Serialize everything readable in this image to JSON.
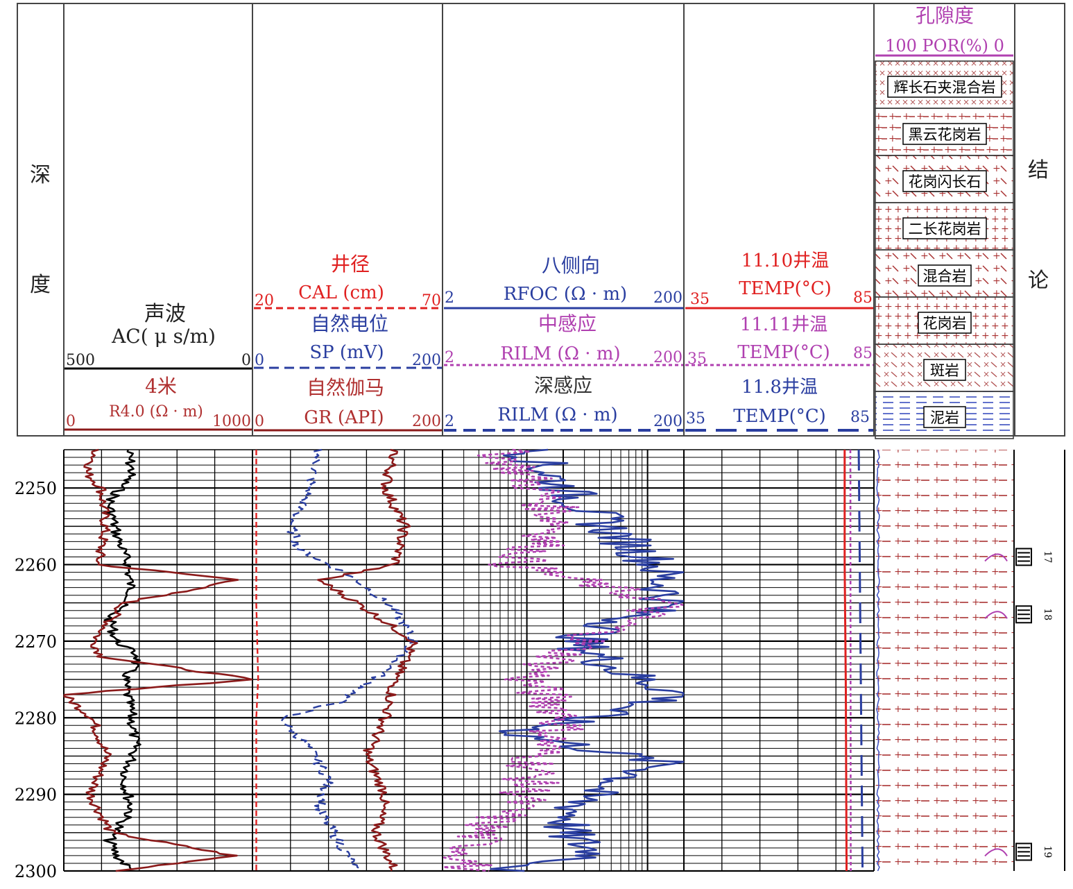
{
  "depth_header": {
    "char1": "深",
    "char2": "度"
  },
  "conclusion_header": {
    "char1": "结",
    "char2": "论"
  },
  "colors": {
    "brown": "#8b1a1a",
    "red": "#e02020",
    "blue": "#2a3ea0",
    "purple": "#b040b0",
    "black": "#000000"
  },
  "tracks": {
    "ac": {
      "name": "声波",
      "unit": "AC( μ s/m)",
      "left": "500",
      "right": "0",
      "color": "#000000"
    },
    "r4": {
      "name": "4米",
      "unit": "R4.0 (Ω · m)",
      "left": "0",
      "right": "1000",
      "color": "#8b1a1a"
    },
    "cal": {
      "name": "井径",
      "unit": "CAL (cm)",
      "left": "20",
      "right": "70",
      "color": "#e02020"
    },
    "sp": {
      "name": "自然电位",
      "unit": "SP (mV)",
      "left": "0",
      "right": "200",
      "color": "#2a3ea0"
    },
    "gr": {
      "name": "自然伽马",
      "unit": "GR (API)",
      "left": "0",
      "right": "200",
      "color": "#8b1a1a"
    },
    "rfoc": {
      "name": "八侧向",
      "unit": "RFOC (Ω · m)",
      "left": "2",
      "right": "200",
      "color": "#2a3ea0"
    },
    "rilm": {
      "name": "中感应",
      "unit": "RILM (Ω · m)",
      "left": "2",
      "right": "200",
      "color": "#b040b0"
    },
    "rild": {
      "name": "深感应",
      "unit": "RILM (Ω · m)",
      "left": "2",
      "right": "200",
      "color": "#2a3ea0"
    },
    "t1": {
      "name": "11.10井温",
      "unit": "TEMP(°C)",
      "left": "35",
      "right": "85",
      "color": "#e02020"
    },
    "t2": {
      "name": "11.11井温",
      "unit": "TEMP(°C)",
      "left": "35",
      "right": "85",
      "color": "#b040b0"
    },
    "t3": {
      "name": "11.8井温",
      "unit": "TEMP(°C)",
      "left": "35",
      "right": "85",
      "color": "#2a3ea0"
    },
    "por": {
      "name": "孔隙度",
      "unit": "100 POR(%) 0",
      "color": "#b040b0"
    }
  },
  "lithology_legend": [
    "辉长石夹混合岩",
    "黑云花岗岩",
    "花岗闪长石",
    "二长花岗岩",
    "混合岩",
    "花岗岩",
    "斑岩",
    "泥岩"
  ],
  "conclusions": [
    "17",
    "18",
    "19"
  ],
  "chart_data": {
    "type": "line",
    "depth_unit": "m",
    "depth_range": [
      2245,
      2300
    ],
    "depth_ticks": [
      2250,
      2260,
      2270,
      2280,
      2290,
      2300
    ],
    "series": [
      {
        "name": "AC",
        "x_range": [
          500,
          0
        ],
        "depth": [
          2245,
          2248,
          2252,
          2256,
          2260,
          2264,
          2267,
          2270,
          2272,
          2275,
          2280,
          2284,
          2288,
          2292,
          2296,
          2298,
          2300
        ],
        "values": [
          330,
          320,
          380,
          360,
          330,
          320,
          380,
          360,
          300,
          340,
          320,
          310,
          340,
          320,
          380,
          360,
          320
        ]
      },
      {
        "name": "R4.0",
        "x_range": [
          0,
          1000
        ],
        "depth": [
          2245,
          2248,
          2250,
          2255,
          2260,
          2262,
          2265,
          2270,
          2272,
          2275,
          2277,
          2280,
          2285,
          2290,
          2295,
          2298,
          2300
        ],
        "values": [
          180,
          120,
          200,
          220,
          180,
          930,
          320,
          160,
          200,
          1000,
          0,
          150,
          230,
          140,
          250,
          900,
          300
        ]
      },
      {
        "name": "CAL",
        "x_range": [
          20,
          70
        ],
        "depth": [
          2245,
          2255,
          2265,
          2275,
          2280,
          2285,
          2295,
          2300
        ],
        "values": [
          21,
          21,
          21,
          21.5,
          21,
          21,
          21,
          21
        ]
      },
      {
        "name": "SP",
        "x_range": [
          0,
          200
        ],
        "depth": [
          2245,
          2250,
          2255,
          2258,
          2262,
          2266,
          2270,
          2274,
          2278,
          2280,
          2284,
          2288,
          2292,
          2296,
          2300
        ],
        "values": [
          70,
          60,
          40,
          50,
          110,
          150,
          170,
          140,
          90,
          30,
          60,
          80,
          70,
          90,
          110
        ]
      },
      {
        "name": "GR",
        "x_range": [
          0,
          200
        ],
        "depth": [
          2245,
          2250,
          2255,
          2260,
          2262,
          2265,
          2270,
          2275,
          2280,
          2285,
          2290,
          2295,
          2300
        ],
        "values": [
          150,
          140,
          160,
          150,
          70,
          110,
          170,
          150,
          140,
          120,
          140,
          130,
          150
        ]
      },
      {
        "name": "RFOC",
        "x_range": [
          2,
          200
        ],
        "depth": [
          2245,
          2250,
          2255,
          2260,
          2265,
          2267,
          2270,
          2274,
          2277,
          2282,
          2286,
          2290,
          2295,
          2298,
          2300
        ],
        "values": [
          10,
          20,
          45,
          120,
          150,
          70,
          25,
          60,
          200,
          8,
          140,
          30,
          20,
          40,
          6
        ]
      },
      {
        "name": "RILM",
        "x_range": [
          2,
          200
        ],
        "depth": [
          2245,
          2250,
          2255,
          2260,
          2265,
          2270,
          2275,
          2280,
          2285,
          2290,
          2295,
          2300
        ],
        "values": [
          6,
          12,
          20,
          8,
          140,
          30,
          10,
          22,
          12,
          10,
          4,
          3
        ]
      },
      {
        "name": "TEMP 11.10",
        "x_range": [
          35,
          85
        ],
        "depth": [
          2245,
          2260,
          2276,
          2300
        ],
        "values": [
          77.3,
          77.3,
          77.6,
          77.8
        ]
      },
      {
        "name": "TEMP 11.11",
        "x_range": [
          35,
          85
        ],
        "depth": [
          2245,
          2300
        ],
        "values": [
          78.8,
          78.9
        ]
      },
      {
        "name": "TEMP 11.8",
        "x_range": [
          35,
          85
        ],
        "depth": [
          2245,
          2300
        ],
        "values": [
          81,
          82
        ]
      }
    ]
  }
}
